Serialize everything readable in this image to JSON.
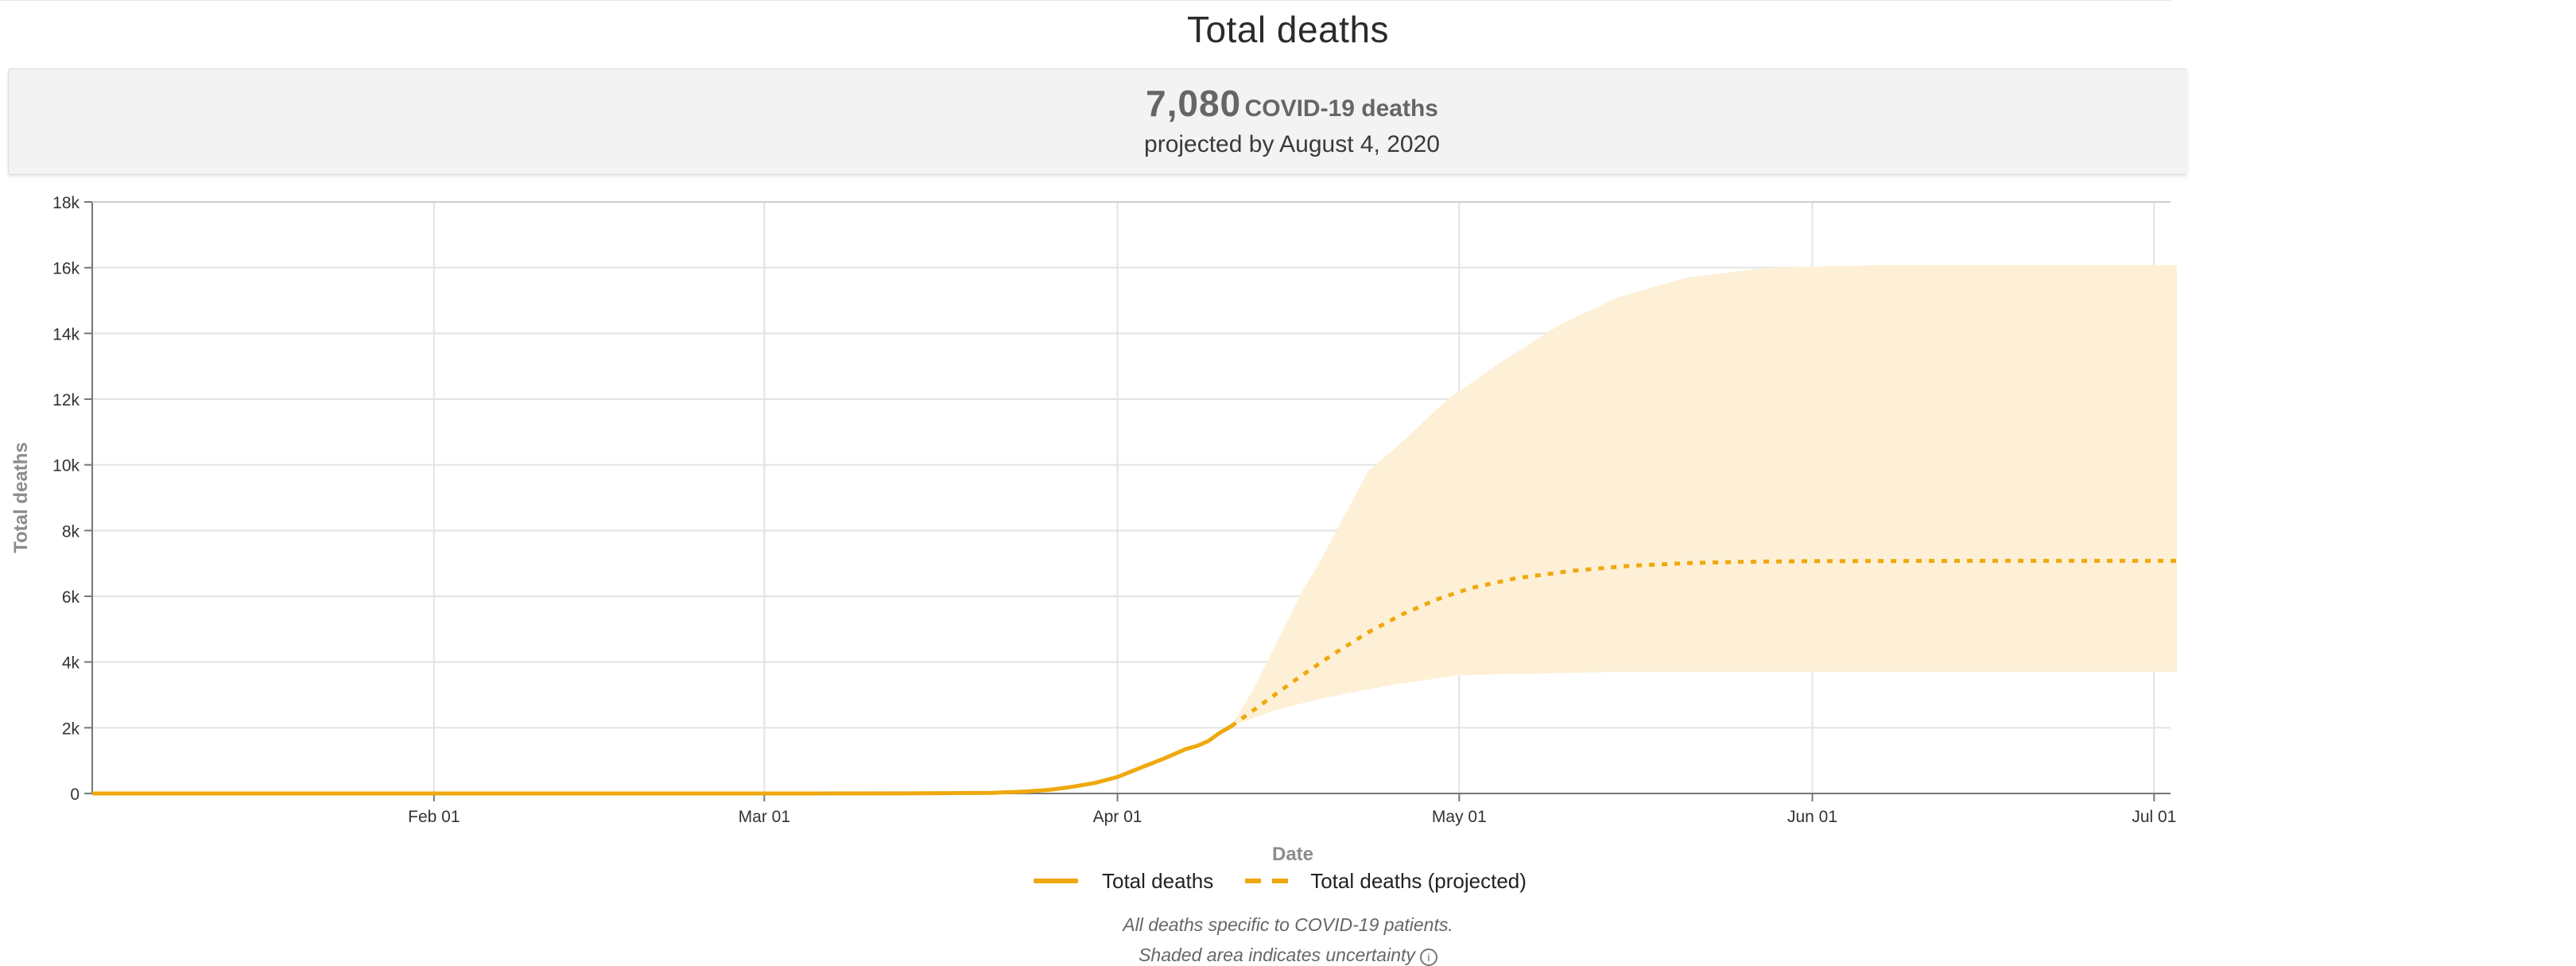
{
  "page": {
    "title": "Total deaths",
    "summary": {
      "number": "7,080",
      "unit": "COVID-19 deaths",
      "subtitle": "projected by August 4, 2020"
    },
    "footnotes": [
      "All deaths specific to COVID-19 patients.",
      "Shaded area indicates uncertainty"
    ]
  },
  "colors": {
    "series": "#efa80e",
    "band": "#fdf0d6",
    "grid": "#e3e3e3",
    "axis": "#777777",
    "axis_title": "#8c8c8c"
  },
  "chart_data": {
    "type": "line",
    "title": "Total deaths",
    "xlabel": "Date",
    "ylabel": "Total deaths",
    "x_ticks": [
      "Feb 01",
      "Mar 01",
      "Apr 01",
      "May 01",
      "Jun 01",
      "Jul 01"
    ],
    "x_tick_dates": [
      "2020-02-01",
      "2020-03-01",
      "2020-04-01",
      "2020-05-01",
      "2020-06-01",
      "2020-07-01"
    ],
    "xlim": [
      "2020-01-02",
      "2020-07-03"
    ],
    "y_ticks": [
      "0",
      "2k",
      "4k",
      "6k",
      "8k",
      "10k",
      "12k",
      "14k",
      "16k",
      "18k"
    ],
    "y_tick_values": [
      0,
      2000,
      4000,
      6000,
      8000,
      10000,
      12000,
      14000,
      16000,
      18000
    ],
    "ylim": [
      0,
      18000
    ],
    "grid": true,
    "legend_position": "bottom-center",
    "series": [
      {
        "name": "Total deaths",
        "style": "solid",
        "points": [
          [
            "2020-01-02",
            0
          ],
          [
            "2020-02-01",
            0
          ],
          [
            "2020-03-01",
            0
          ],
          [
            "2020-03-15",
            5
          ],
          [
            "2020-03-21",
            20
          ],
          [
            "2020-03-24",
            60
          ],
          [
            "2020-03-26",
            110
          ],
          [
            "2020-03-28",
            200
          ],
          [
            "2020-03-30",
            320
          ],
          [
            "2020-04-01",
            500
          ],
          [
            "2020-04-03",
            780
          ],
          [
            "2020-04-05",
            1050
          ],
          [
            "2020-04-07",
            1350
          ],
          [
            "2020-04-08",
            1450
          ],
          [
            "2020-04-09",
            1600
          ],
          [
            "2020-04-10",
            1850
          ],
          [
            "2020-04-11",
            2050
          ]
        ]
      },
      {
        "name": "Total deaths (projected)",
        "style": "dashed",
        "points": [
          [
            "2020-04-11",
            2050
          ],
          [
            "2020-04-13",
            2550
          ],
          [
            "2020-04-15",
            3050
          ],
          [
            "2020-04-17",
            3550
          ],
          [
            "2020-04-20",
            4250
          ],
          [
            "2020-04-23",
            4900
          ],
          [
            "2020-04-26",
            5450
          ],
          [
            "2020-04-29",
            5900
          ],
          [
            "2020-05-02",
            6250
          ],
          [
            "2020-05-06",
            6550
          ],
          [
            "2020-05-11",
            6780
          ],
          [
            "2020-05-16",
            6930
          ],
          [
            "2020-05-21",
            7010
          ],
          [
            "2020-05-26",
            7050
          ],
          [
            "2020-06-01",
            7070
          ],
          [
            "2020-06-15",
            7080
          ],
          [
            "2020-07-03",
            7080
          ]
        ]
      }
    ],
    "uncertainty_band": {
      "upper": [
        [
          "2020-04-11",
          2050
        ],
        [
          "2020-04-13",
          3200
        ],
        [
          "2020-04-15",
          4600
        ],
        [
          "2020-04-17",
          6000
        ],
        [
          "2020-04-19",
          7200
        ],
        [
          "2020-04-21",
          8500
        ],
        [
          "2020-04-23",
          9800
        ],
        [
          "2020-04-26",
          10700
        ],
        [
          "2020-04-30",
          12000
        ],
        [
          "2020-05-05",
          13200
        ],
        [
          "2020-05-10",
          14300
        ],
        [
          "2020-05-15",
          15100
        ],
        [
          "2020-05-21",
          15700
        ],
        [
          "2020-05-28",
          16000
        ],
        [
          "2020-06-07",
          16080
        ],
        [
          "2020-07-03",
          16080
        ]
      ],
      "lower": [
        [
          "2020-07-03",
          3700
        ],
        [
          "2020-06-01",
          3700
        ],
        [
          "2020-05-15",
          3700
        ],
        [
          "2020-05-01",
          3600
        ],
        [
          "2020-04-25",
          3300
        ],
        [
          "2020-04-19",
          2900
        ],
        [
          "2020-04-15",
          2550
        ],
        [
          "2020-04-11",
          2050
        ]
      ]
    }
  }
}
